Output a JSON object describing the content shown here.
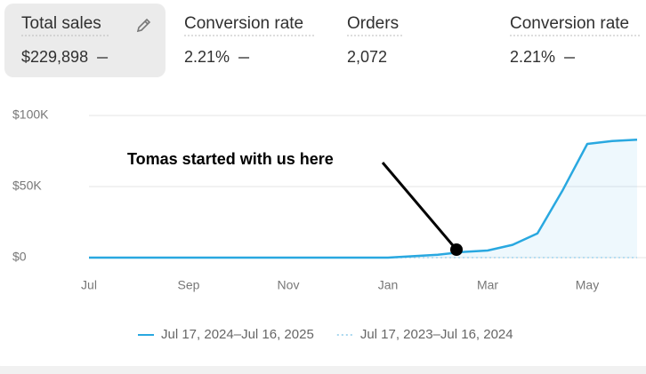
{
  "metrics": [
    {
      "label": "Total sales",
      "value": "$229,898"
    },
    {
      "label": "Conversion rate",
      "value": "2.21%"
    },
    {
      "label": "Orders",
      "value": "2,072"
    },
    {
      "label": "Conversion rate",
      "value": "2.21%"
    }
  ],
  "chart_data": {
    "type": "line",
    "categories": [
      "Jul",
      null,
      null,
      null,
      "Sep",
      null,
      null,
      null,
      "Nov",
      null,
      null,
      null,
      "Jan",
      null,
      null,
      null,
      "Mar",
      null,
      null,
      null,
      "May",
      null,
      null
    ],
    "series": [
      {
        "name": "Jul 17, 2024–Jul 16, 2025",
        "color": "#29a8e0",
        "values": [
          0,
          0,
          0,
          0,
          0,
          0,
          0,
          0,
          0,
          0,
          0,
          0,
          0,
          1000,
          2000,
          4000,
          5000,
          9000,
          17000,
          47000,
          80000,
          82000,
          83000
        ]
      },
      {
        "name": "Jul 17, 2023–Jul 16, 2024",
        "color": "#a9d8ef",
        "values": [
          0,
          0,
          0,
          0,
          0,
          0,
          0,
          0,
          0,
          0,
          0,
          0,
          0,
          0,
          0,
          0,
          0,
          0,
          0,
          0,
          0,
          0,
          0
        ]
      }
    ],
    "ylim": [
      0,
      100000
    ],
    "yticks": [
      {
        "value": 0,
        "label": "$0"
      },
      {
        "value": 50000,
        "label": "$50K"
      },
      {
        "value": 100000,
        "label": "$100K"
      }
    ],
    "grid": true,
    "annotation": "Tomas started with us here"
  }
}
